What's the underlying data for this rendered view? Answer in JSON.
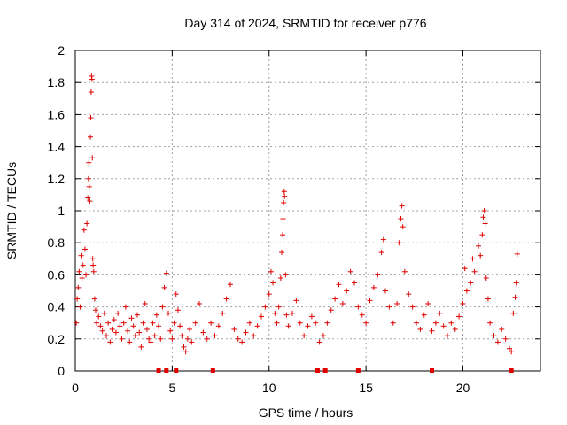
{
  "chart_data": {
    "type": "scatter",
    "title": "Day 314 of 2024, SRMTID for receiver p776",
    "xlabel": "GPS time / hours",
    "ylabel": "SRMTID / TECUs",
    "xlim": [
      0,
      24
    ],
    "ylim": [
      0,
      2
    ],
    "x_ticks": [
      0,
      5,
      10,
      15,
      20
    ],
    "x_tick_labels": [
      "0",
      "5",
      "10",
      "15",
      "20"
    ],
    "y_ticks": [
      0,
      0.2,
      0.4,
      0.6,
      0.8,
      1,
      1.2,
      1.4,
      1.6,
      1.8,
      2
    ],
    "y_tick_labels": [
      "0",
      "0.2",
      "0.4",
      "0.6",
      "0.8",
      "1",
      "1.2",
      "1.4",
      "1.6",
      "1.8",
      "2"
    ],
    "grid": true,
    "marker": "+",
    "color": "#e00000",
    "series": [
      {
        "name": "SRMTID",
        "points": [
          [
            0.05,
            0.3
          ],
          [
            0.1,
            0.45
          ],
          [
            0.15,
            0.52
          ],
          [
            0.2,
            0.62
          ],
          [
            0.25,
            0.4
          ],
          [
            0.3,
            0.72
          ],
          [
            0.35,
            0.58
          ],
          [
            0.4,
            0.66
          ],
          [
            0.45,
            0.88
          ],
          [
            0.5,
            0.76
          ],
          [
            0.55,
            0.6
          ],
          [
            0.6,
            0.92
          ],
          [
            0.65,
            1.08
          ],
          [
            0.68,
            1.2
          ],
          [
            0.7,
            1.3
          ],
          [
            0.72,
            1.15
          ],
          [
            0.75,
            1.06
          ],
          [
            0.78,
            1.46
          ],
          [
            0.8,
            1.58
          ],
          [
            0.82,
            1.74
          ],
          [
            0.84,
            1.84
          ],
          [
            0.86,
            1.82
          ],
          [
            0.88,
            1.33
          ],
          [
            0.9,
            0.7
          ],
          [
            0.92,
            0.66
          ],
          [
            0.95,
            0.62
          ],
          [
            1.0,
            0.45
          ],
          [
            1.05,
            0.38
          ],
          [
            1.1,
            0.3
          ],
          [
            1.2,
            0.34
          ],
          [
            1.3,
            0.28
          ],
          [
            1.4,
            0.25
          ],
          [
            1.5,
            0.36
          ],
          [
            1.6,
            0.22
          ],
          [
            1.7,
            0.3
          ],
          [
            1.8,
            0.18
          ],
          [
            1.9,
            0.26
          ],
          [
            2.0,
            0.32
          ],
          [
            2.1,
            0.24
          ],
          [
            2.2,
            0.36
          ],
          [
            2.3,
            0.28
          ],
          [
            2.4,
            0.2
          ],
          [
            2.5,
            0.3
          ],
          [
            2.6,
            0.4
          ],
          [
            2.7,
            0.25
          ],
          [
            2.8,
            0.18
          ],
          [
            2.9,
            0.33
          ],
          [
            3.0,
            0.28
          ],
          [
            3.1,
            0.22
          ],
          [
            3.2,
            0.35
          ],
          [
            3.3,
            0.24
          ],
          [
            3.4,
            0.15
          ],
          [
            3.5,
            0.3
          ],
          [
            3.6,
            0.42
          ],
          [
            3.7,
            0.26
          ],
          [
            3.8,
            0.2
          ],
          [
            3.9,
            0.18
          ],
          [
            4.0,
            0.3
          ],
          [
            4.1,
            0.22
          ],
          [
            4.2,
            0.35
          ],
          [
            4.3,
            0.28
          ],
          [
            4.4,
            0.2
          ],
          [
            4.5,
            0.4
          ],
          [
            4.6,
            0.52
          ],
          [
            4.7,
            0.61
          ],
          [
            4.8,
            0.36
          ],
          [
            4.9,
            0.25
          ],
          [
            5.0,
            0.2
          ],
          [
            5.1,
            0.3
          ],
          [
            5.2,
            0.48
          ],
          [
            5.3,
            0.38
          ],
          [
            5.4,
            0.28
          ],
          [
            5.5,
            0.22
          ],
          [
            5.6,
            0.15
          ],
          [
            5.7,
            0.12
          ],
          [
            5.8,
            0.2
          ],
          [
            5.9,
            0.26
          ],
          [
            6.0,
            0.18
          ],
          [
            6.2,
            0.3
          ],
          [
            6.4,
            0.42
          ],
          [
            6.6,
            0.24
          ],
          [
            6.8,
            0.2
          ],
          [
            7.0,
            0.3
          ],
          [
            7.2,
            0.22
          ],
          [
            7.4,
            0.28
          ],
          [
            7.6,
            0.36
          ],
          [
            7.8,
            0.45
          ],
          [
            8.0,
            0.54
          ],
          [
            8.2,
            0.26
          ],
          [
            8.4,
            0.2
          ],
          [
            8.6,
            0.18
          ],
          [
            8.8,
            0.24
          ],
          [
            9.0,
            0.3
          ],
          [
            9.2,
            0.22
          ],
          [
            9.4,
            0.28
          ],
          [
            9.6,
            0.34
          ],
          [
            9.8,
            0.4
          ],
          [
            10.0,
            0.48
          ],
          [
            10.1,
            0.62
          ],
          [
            10.2,
            0.55
          ],
          [
            10.3,
            0.36
          ],
          [
            10.4,
            0.3
          ],
          [
            10.5,
            0.4
          ],
          [
            10.6,
            0.58
          ],
          [
            10.65,
            0.74
          ],
          [
            10.7,
            0.85
          ],
          [
            10.72,
            0.95
          ],
          [
            10.75,
            1.05
          ],
          [
            10.78,
            1.12
          ],
          [
            10.8,
            1.09
          ],
          [
            10.85,
            0.6
          ],
          [
            10.9,
            0.35
          ],
          [
            11.0,
            0.28
          ],
          [
            11.2,
            0.36
          ],
          [
            11.4,
            0.44
          ],
          [
            11.6,
            0.3
          ],
          [
            11.8,
            0.22
          ],
          [
            12.0,
            0.28
          ],
          [
            12.2,
            0.34
          ],
          [
            12.4,
            0.3
          ],
          [
            12.6,
            0.18
          ],
          [
            12.8,
            0.22
          ],
          [
            13.0,
            0.3
          ],
          [
            13.2,
            0.38
          ],
          [
            13.4,
            0.45
          ],
          [
            13.6,
            0.54
          ],
          [
            13.8,
            0.42
          ],
          [
            14.0,
            0.5
          ],
          [
            14.2,
            0.62
          ],
          [
            14.4,
            0.55
          ],
          [
            14.6,
            0.4
          ],
          [
            14.8,
            0.35
          ],
          [
            15.0,
            0.3
          ],
          [
            15.2,
            0.44
          ],
          [
            15.4,
            0.52
          ],
          [
            15.6,
            0.6
          ],
          [
            15.8,
            0.74
          ],
          [
            15.9,
            0.82
          ],
          [
            16.0,
            0.5
          ],
          [
            16.2,
            0.4
          ],
          [
            16.4,
            0.3
          ],
          [
            16.6,
            0.42
          ],
          [
            16.7,
            0.8
          ],
          [
            16.8,
            0.95
          ],
          [
            16.85,
            1.03
          ],
          [
            16.9,
            0.9
          ],
          [
            17.0,
            0.62
          ],
          [
            17.2,
            0.48
          ],
          [
            17.4,
            0.4
          ],
          [
            17.6,
            0.3
          ],
          [
            17.8,
            0.26
          ],
          [
            18.0,
            0.35
          ],
          [
            18.2,
            0.42
          ],
          [
            18.4,
            0.25
          ],
          [
            18.6,
            0.3
          ],
          [
            18.8,
            0.36
          ],
          [
            19.0,
            0.28
          ],
          [
            19.2,
            0.22
          ],
          [
            19.4,
            0.3
          ],
          [
            19.6,
            0.26
          ],
          [
            19.8,
            0.34
          ],
          [
            20.0,
            0.42
          ],
          [
            20.1,
            0.64
          ],
          [
            20.2,
            0.5
          ],
          [
            20.4,
            0.55
          ],
          [
            20.5,
            0.7
          ],
          [
            20.6,
            0.62
          ],
          [
            20.8,
            0.78
          ],
          [
            20.9,
            0.72
          ],
          [
            21.0,
            0.85
          ],
          [
            21.05,
            0.96
          ],
          [
            21.1,
            1.0
          ],
          [
            21.15,
            0.92
          ],
          [
            21.2,
            0.58
          ],
          [
            21.3,
            0.45
          ],
          [
            21.4,
            0.3
          ],
          [
            21.6,
            0.22
          ],
          [
            21.8,
            0.18
          ],
          [
            22.0,
            0.26
          ],
          [
            22.2,
            0.2
          ],
          [
            22.4,
            0.14
          ],
          [
            22.5,
            0.12
          ],
          [
            22.6,
            0.36
          ],
          [
            22.7,
            0.46
          ],
          [
            22.75,
            0.55
          ],
          [
            22.8,
            0.73
          ]
        ]
      }
    ],
    "zero_markers": [
      4.3,
      4.7,
      5.2,
      7.1,
      12.5,
      12.9,
      14.6,
      18.4,
      22.5
    ]
  }
}
